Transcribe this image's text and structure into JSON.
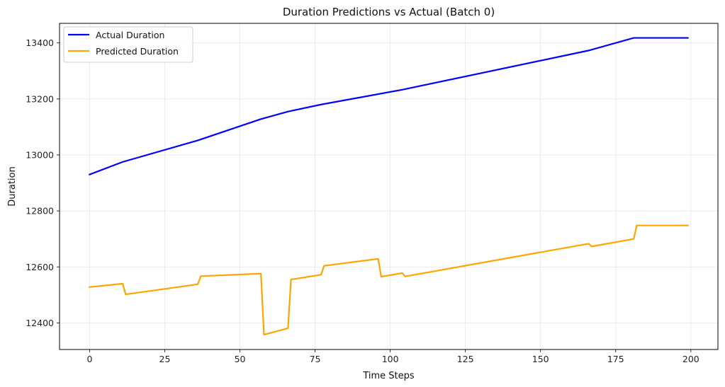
{
  "chart_data": {
    "type": "line",
    "title": "Duration Predictions vs Actual (Batch 0)",
    "xlabel": "Time Steps",
    "ylabel": "Duration",
    "xlim": [
      -10,
      209
    ],
    "ylim": [
      12305,
      13470
    ],
    "x_ticks": [
      0,
      25,
      50,
      75,
      100,
      125,
      150,
      175,
      200
    ],
    "y_ticks": [
      12400,
      12600,
      12800,
      13000,
      13200,
      13400
    ],
    "grid": true,
    "legend_position": "top-left",
    "series": [
      {
        "name": "Actual Duration",
        "color": "#0000ff",
        "points": [
          [
            0,
            12930
          ],
          [
            11,
            12975
          ],
          [
            36,
            13052
          ],
          [
            57,
            13128
          ],
          [
            66,
            13155
          ],
          [
            77,
            13180
          ],
          [
            104,
            13233
          ],
          [
            166,
            13373
          ],
          [
            181,
            13418
          ],
          [
            199,
            13418
          ]
        ]
      },
      {
        "name": "Predicted Duration",
        "color": "#ffa500",
        "points": [
          [
            0,
            12528
          ],
          [
            11,
            12540
          ],
          [
            12,
            12502
          ],
          [
            36,
            12538
          ],
          [
            37,
            12567
          ],
          [
            57,
            12576
          ],
          [
            58,
            12358
          ],
          [
            66,
            12381
          ],
          [
            67,
            12555
          ],
          [
            77,
            12572
          ],
          [
            78,
            12604
          ],
          [
            96,
            12629
          ],
          [
            97,
            12565
          ],
          [
            104,
            12578
          ],
          [
            105,
            12566
          ],
          [
            166,
            12683
          ],
          [
            167,
            12673
          ],
          [
            181,
            12700
          ],
          [
            182,
            12748
          ],
          [
            199,
            12748
          ]
        ]
      }
    ]
  }
}
